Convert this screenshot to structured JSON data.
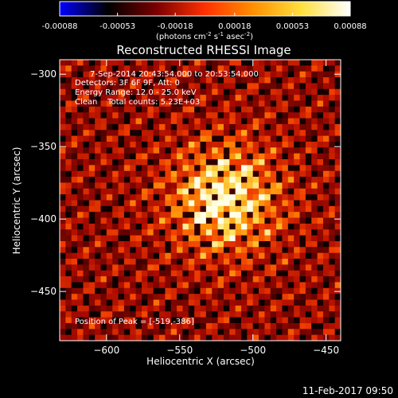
{
  "chart_data": {
    "type": "heatmap",
    "title": "Reconstructed RHESSI Image",
    "xlabel": "Heliocentric X (arcsec)",
    "ylabel": "Heliocentric Y (arcsec)",
    "xlim": [
      -632,
      -440
    ],
    "ylim": [
      -484,
      -290
    ],
    "x_ticks": [
      -600,
      -550,
      -500,
      -450
    ],
    "y_ticks": [
      -450,
      -400,
      -350,
      -300
    ],
    "colorbar": {
      "range": [
        -0.00088,
        0.00088
      ],
      "ticks": [
        "-0.00088",
        "-0.00053",
        "-0.00018",
        "0.00018",
        "0.00053",
        "0.00088"
      ],
      "unit_text": "(photons cm",
      "unit_sup1": "-2",
      "unit_mid": " s",
      "unit_sup2": "-1",
      "unit_end": " asec",
      "unit_sup3": "-2",
      "unit_close": ")",
      "colormap": [
        "#0000ff",
        "#000000",
        "#7a0000",
        "#ff3000",
        "#ff9000",
        "#ffe040",
        "#ffffff"
      ]
    },
    "annotations": {
      "time_range": "7-Sep-2014 20:43:54.000 to 20:53:54.000",
      "detectors": "Detectors: 3F 6F 9F, Att: 0",
      "energy": "Energy Range: 12.0 - 25.0 keV",
      "method": "Clean    Total counts: 5.23E+03",
      "peak": "Position of Peak = [-519,-386]"
    },
    "peak_position": [
      -519,
      -386
    ],
    "grid": false
  },
  "footer": {
    "date": "11-Feb-2017 09:50"
  }
}
